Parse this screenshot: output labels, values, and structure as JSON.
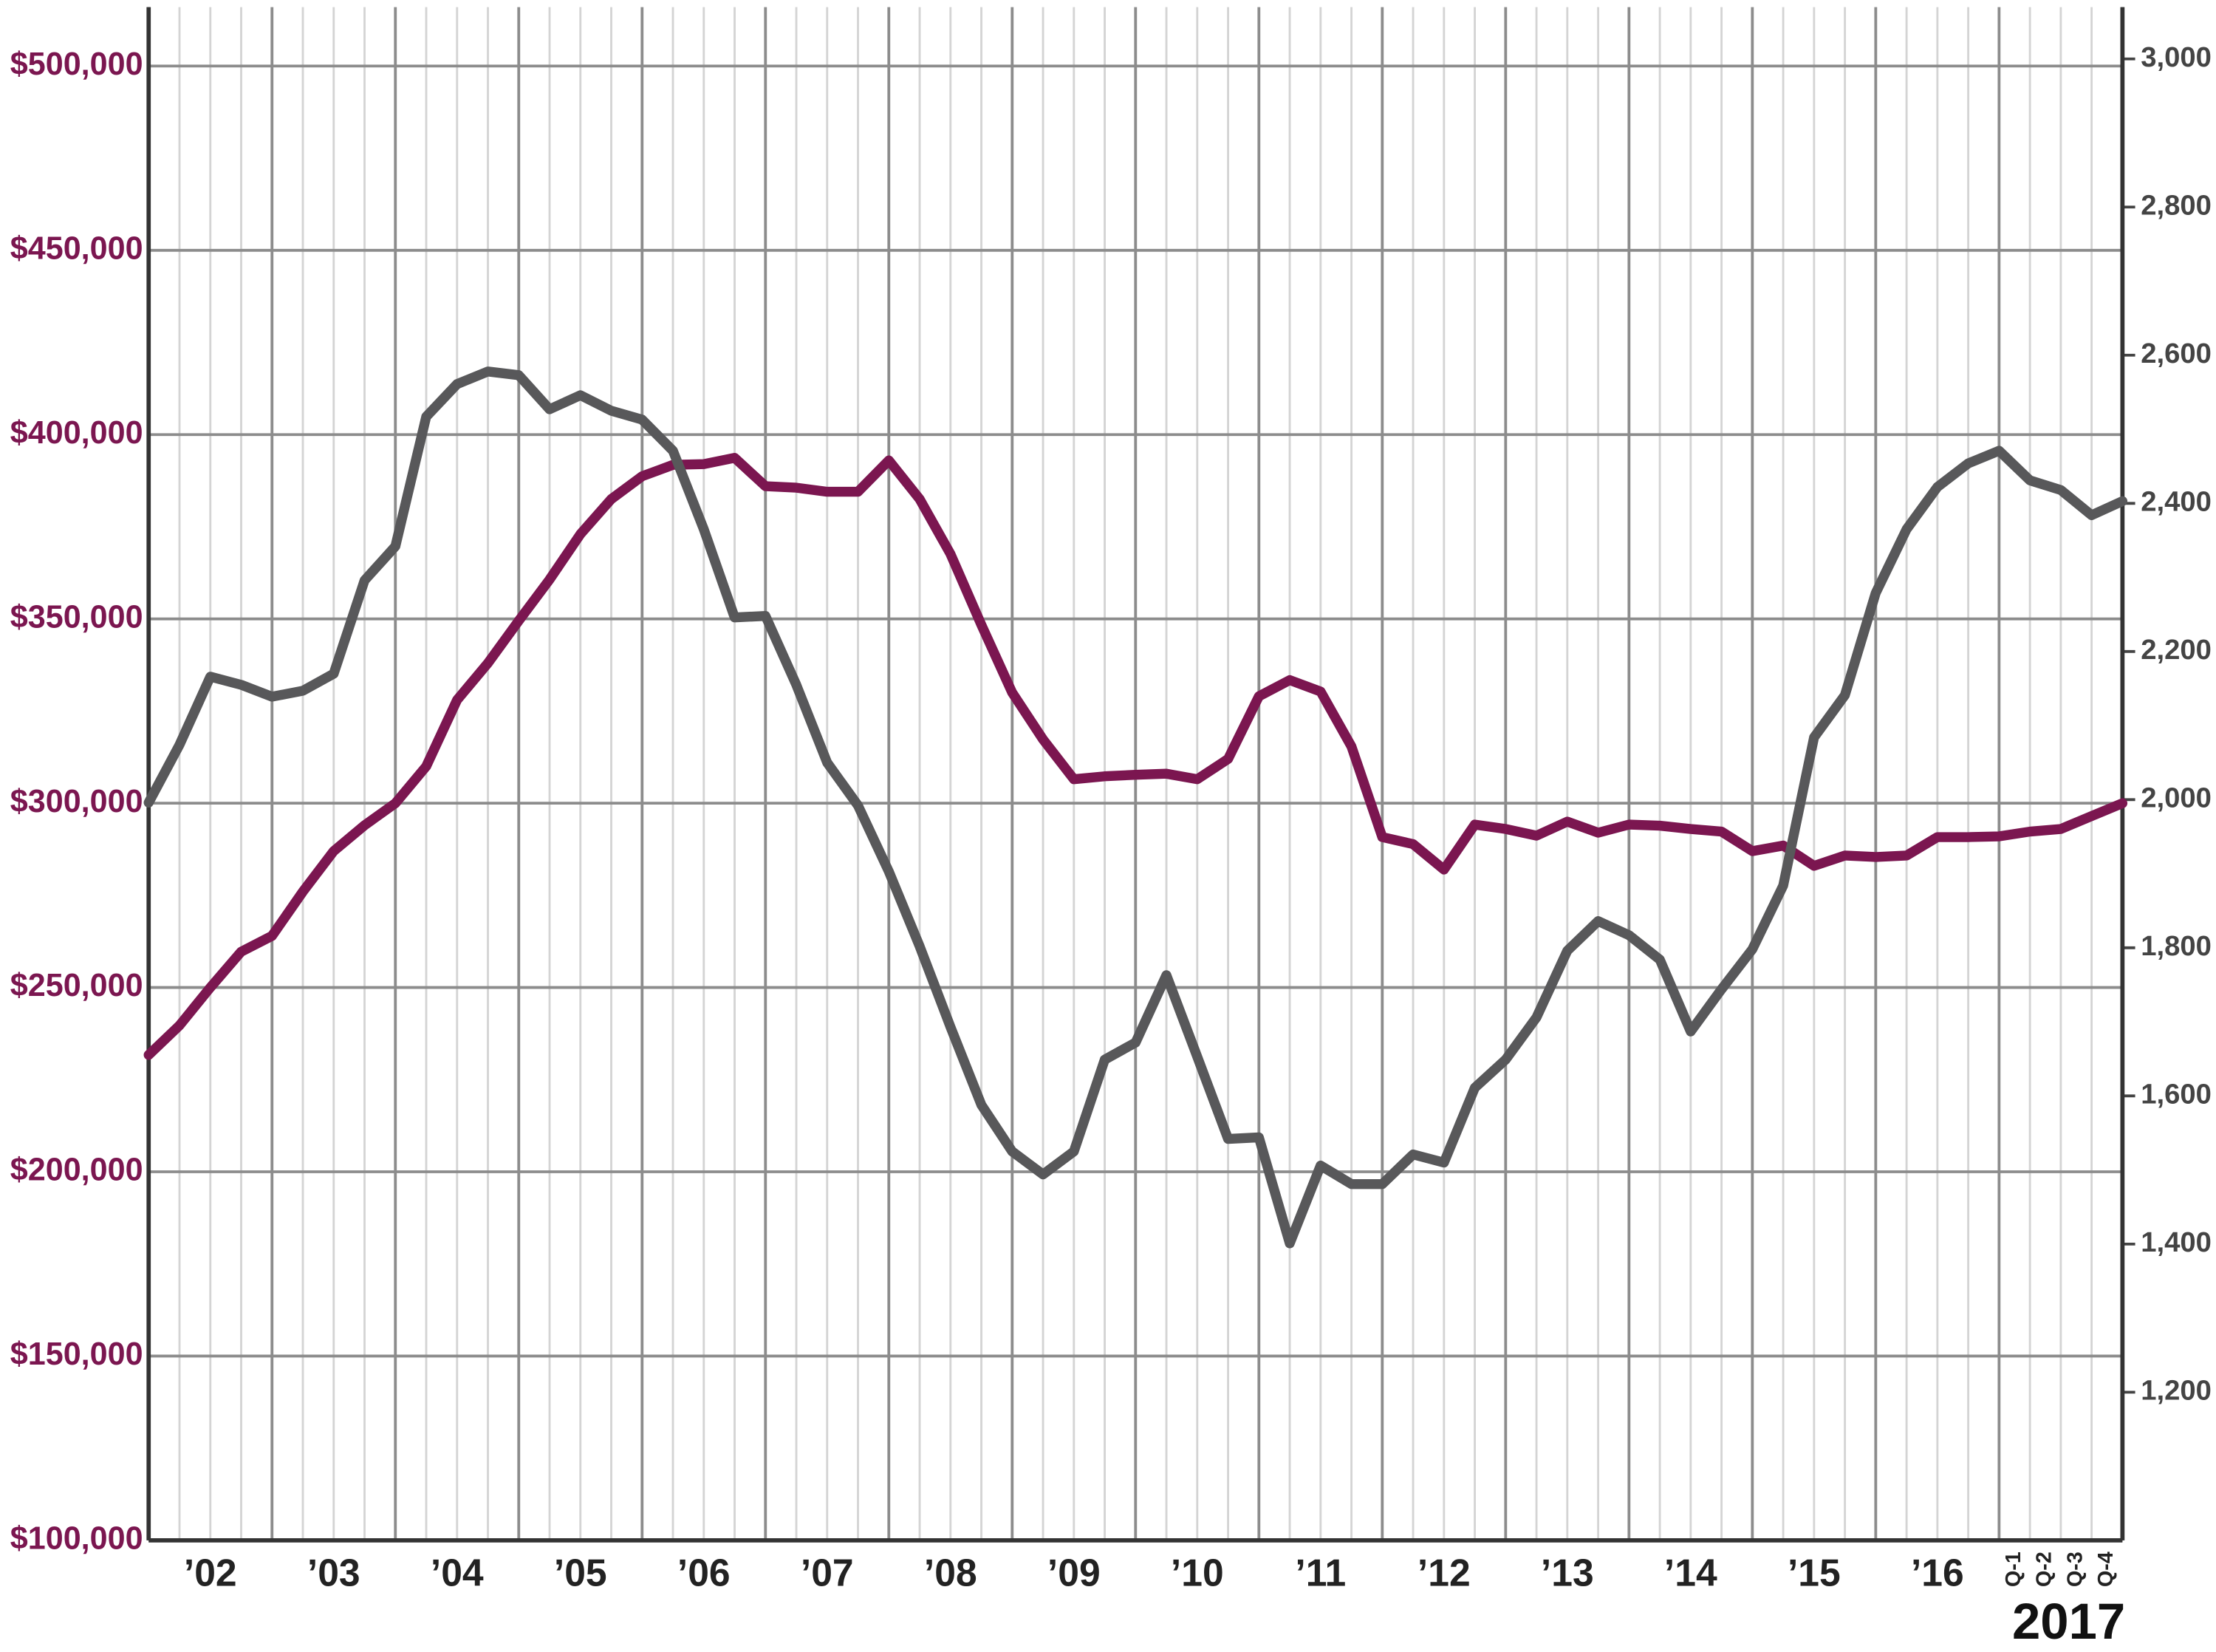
{
  "chart_data": {
    "type": "line",
    "x": [
      2002,
      2002.25,
      2002.5,
      2002.75,
      2003,
      2003.25,
      2003.5,
      2003.75,
      2004,
      2004.25,
      2004.5,
      2004.75,
      2005,
      2005.25,
      2005.5,
      2005.75,
      2006,
      2006.25,
      2006.5,
      2006.75,
      2007,
      2007.25,
      2007.5,
      2007.75,
      2008,
      2008.25,
      2008.5,
      2008.75,
      2009,
      2009.25,
      2009.5,
      2009.75,
      2010,
      2010.25,
      2010.5,
      2010.75,
      2011,
      2011.25,
      2011.5,
      2011.75,
      2012,
      2012.25,
      2012.5,
      2012.75,
      2013,
      2013.25,
      2013.5,
      2013.75,
      2014,
      2014.25,
      2014.5,
      2014.75,
      2015,
      2015.25,
      2015.5,
      2015.75,
      2016,
      2016.25,
      2016.5,
      2016.75,
      2017,
      2017.25,
      2017.5,
      2017.75,
      2018
    ],
    "series": [
      {
        "color": "#7b1650",
        "axis": "y",
        "values": [
          231700,
          239700,
          250000,
          259700,
          264000,
          276000,
          287000,
          294000,
          300000,
          310000,
          328000,
          338000,
          349500,
          360700,
          373000,
          382500,
          388700,
          391800,
          392000,
          393700,
          386000,
          385600,
          384500,
          384500,
          393000,
          382500,
          367600,
          348400,
          330000,
          317300,
          306500,
          307300,
          307700,
          308000,
          306500,
          312000,
          329000,
          333400,
          330300,
          315400,
          290800,
          288900,
          282000,
          294200,
          293000,
          291200,
          295000,
          292000,
          294200,
          293900,
          293000,
          292300,
          287000,
          288500,
          283000,
          285800,
          285400,
          285800,
          290800,
          290800,
          291000,
          292300,
          293000,
          296500,
          300000
        ]
      },
      {
        "color": "#58585a",
        "axis": "y2",
        "values": [
          1996,
          2074,
          2166,
          2155,
          2139,
          2147,
          2170,
          2296,
          2342,
          2517,
          2561,
          2578,
          2573,
          2527,
          2546,
          2525,
          2513,
          2471,
          2365,
          2246,
          2248,
          2155,
          2050,
          1992,
          1903,
          1802,
          1693,
          1588,
          1525,
          1494,
          1525,
          1649,
          1672,
          1763,
          1653,
          1542,
          1544,
          1401,
          1506,
          1481,
          1481,
          1521,
          1510,
          1611,
          1649,
          1706,
          1796,
          1836,
          1817,
          1784,
          1687,
          1744,
          1798,
          1884,
          2084,
          2141,
          2279,
          2365,
          2422,
          2454,
          2471,
          2431,
          2418,
          2384,
          2403
        ]
      }
    ],
    "xlim": [
      2002,
      2018
    ],
    "xticks": [
      {
        "value": 2002.5,
        "label": "’02"
      },
      {
        "value": 2003.5,
        "label": "’03"
      },
      {
        "value": 2004.5,
        "label": "’04"
      },
      {
        "value": 2005.5,
        "label": "’05"
      },
      {
        "value": 2006.5,
        "label": "’06"
      },
      {
        "value": 2007.5,
        "label": "’07"
      },
      {
        "value": 2008.5,
        "label": "’08"
      },
      {
        "value": 2009.5,
        "label": "’09"
      },
      {
        "value": 2010.5,
        "label": "’10"
      },
      {
        "value": 2011.5,
        "label": "’11"
      },
      {
        "value": 2012.5,
        "label": "’12"
      },
      {
        "value": 2013.5,
        "label": "’13"
      },
      {
        "value": 2014.5,
        "label": "’14"
      },
      {
        "value": 2015.5,
        "label": "’15"
      },
      {
        "value": 2016.5,
        "label": "’16"
      }
    ],
    "quarter_ticks": [
      {
        "value": 2017.125,
        "label": "Q-1"
      },
      {
        "value": 2017.375,
        "label": "Q-2"
      },
      {
        "value": 2017.625,
        "label": "Q-3"
      },
      {
        "value": 2017.875,
        "label": "Q-4"
      }
    ],
    "quarter_year": "2017",
    "ylim": [
      100000,
      516000
    ],
    "yticks": [
      {
        "value": 100000,
        "label": "$100,000"
      },
      {
        "value": 150000,
        "label": "$150,000"
      },
      {
        "value": 200000,
        "label": "$200,000"
      },
      {
        "value": 250000,
        "label": "$250,000"
      },
      {
        "value": 300000,
        "label": "$300,000"
      },
      {
        "value": 350000,
        "label": "$350,000"
      },
      {
        "value": 400000,
        "label": "$400,000"
      },
      {
        "value": 450000,
        "label": "$450,000"
      },
      {
        "value": 500000,
        "label": "$500,000"
      }
    ],
    "y2lim": [
      1000,
      3070
    ],
    "y2ticks": [
      {
        "value": 1200,
        "label": "1,200"
      },
      {
        "value": 1400,
        "label": "1,400"
      },
      {
        "value": 1600,
        "label": "1,600"
      },
      {
        "value": 1800,
        "label": "1,800"
      },
      {
        "value": 2000,
        "label": "2,000"
      },
      {
        "value": 2200,
        "label": "2,200"
      },
      {
        "value": 2400,
        "label": "2,400"
      },
      {
        "value": 2600,
        "label": "2,600"
      },
      {
        "value": 2800,
        "label": "2,800"
      },
      {
        "value": 3000,
        "label": "3,000"
      }
    ],
    "grid": true,
    "ytick_color": "#7b1650"
  }
}
